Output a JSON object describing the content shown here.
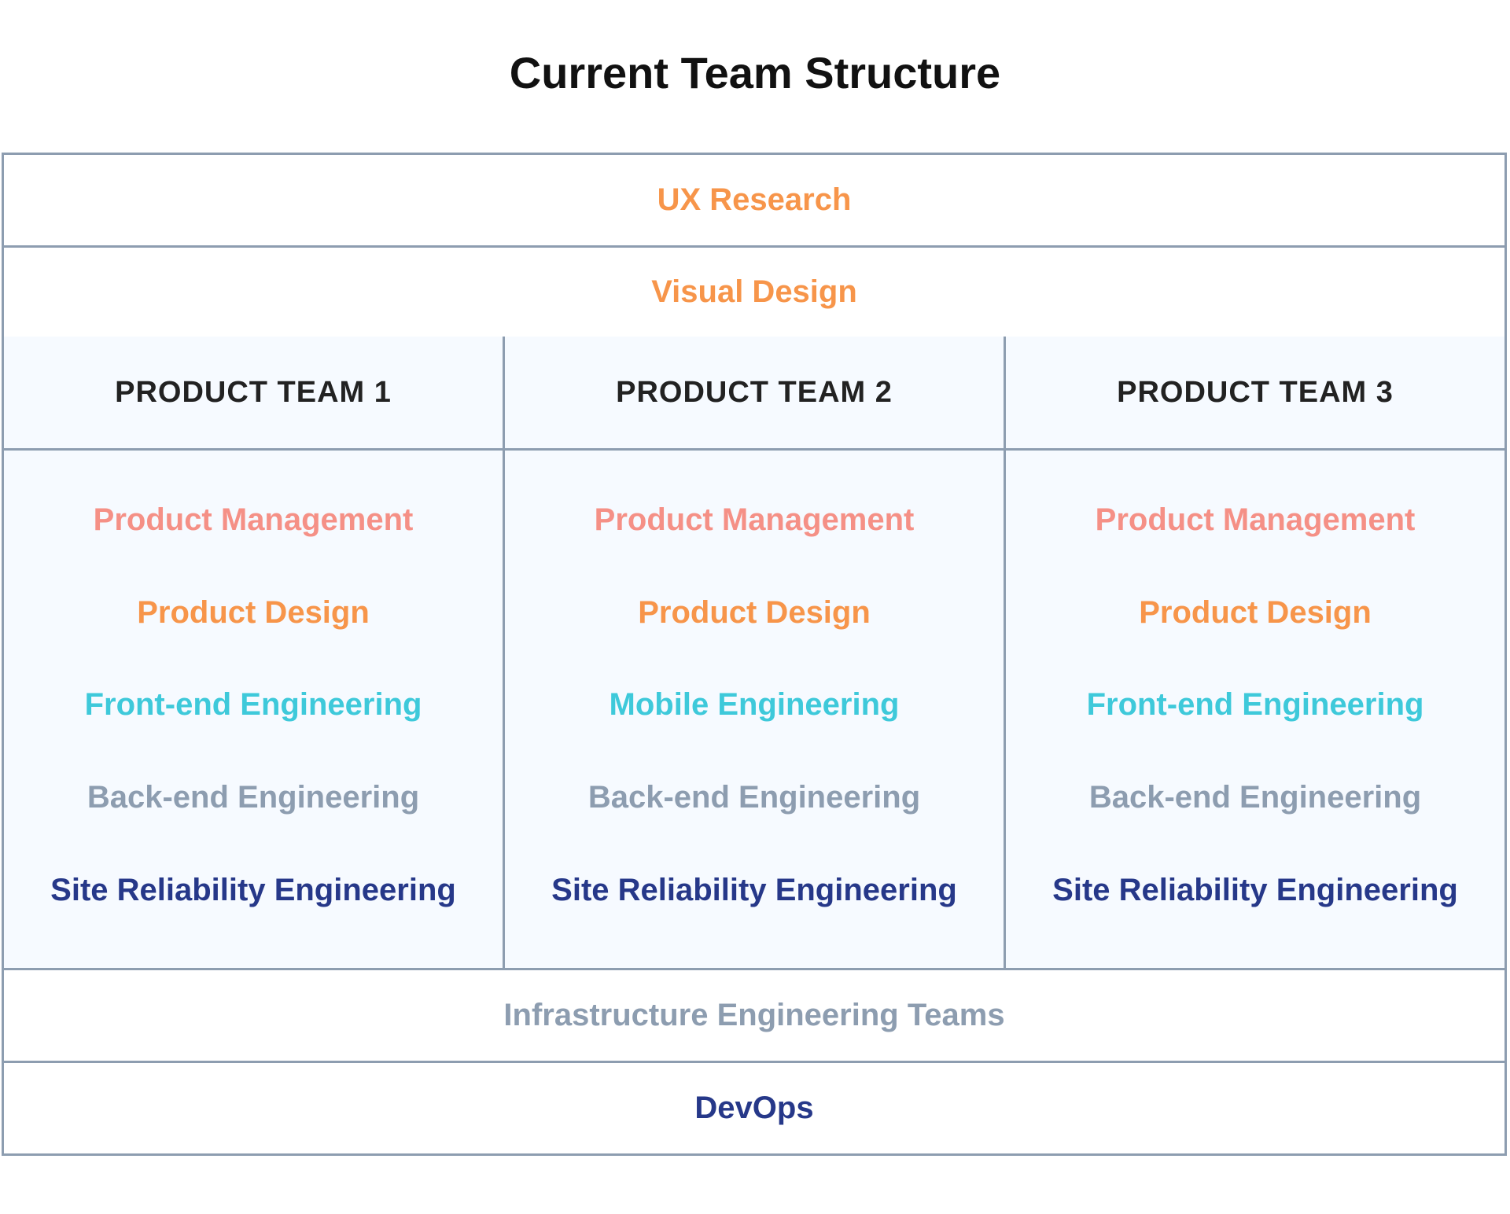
{
  "title": "Current Team Structure",
  "top_rows": [
    {
      "label": "UX Research",
      "color": "#f7954a"
    },
    {
      "label": "Visual Design",
      "color": "#f7954a"
    }
  ],
  "teams": [
    {
      "name": "PRODUCT TEAM 1",
      "items": [
        {
          "label": "Product Management",
          "color": "#f59086"
        },
        {
          "label": "Product Design",
          "color": "#f7954a"
        },
        {
          "label": "Front-end Engineering",
          "color": "#3ec9da"
        },
        {
          "label": "Back-end Engineering",
          "color": "#8d9db0"
        },
        {
          "label": "Site Reliability Engineering",
          "color": "#263889"
        }
      ]
    },
    {
      "name": "PRODUCT TEAM 2",
      "items": [
        {
          "label": "Product Management",
          "color": "#f59086"
        },
        {
          "label": "Product Design",
          "color": "#f7954a"
        },
        {
          "label": "Mobile Engineering",
          "color": "#3ec9da"
        },
        {
          "label": "Back-end Engineering",
          "color": "#8d9db0"
        },
        {
          "label": "Site Reliability Engineering",
          "color": "#263889"
        }
      ]
    },
    {
      "name": "PRODUCT TEAM 3",
      "items": [
        {
          "label": "Product Management",
          "color": "#f59086"
        },
        {
          "label": "Product Design",
          "color": "#f7954a"
        },
        {
          "label": "Front-end Engineering",
          "color": "#3ec9da"
        },
        {
          "label": "Back-end Engineering",
          "color": "#8d9db0"
        },
        {
          "label": "Site Reliability Engineering",
          "color": "#263889"
        }
      ]
    }
  ],
  "bottom_rows": [
    {
      "label": "Infrastructure Engineering Teams",
      "color": "#8d9db0"
    },
    {
      "label": "DevOps",
      "color": "#263889"
    }
  ]
}
